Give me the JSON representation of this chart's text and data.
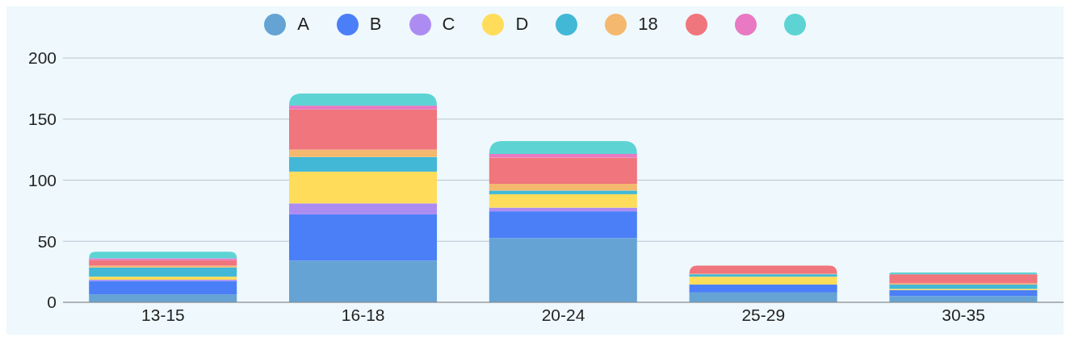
{
  "chart_data": {
    "type": "bar",
    "stacked": true,
    "categories": [
      "13-15",
      "16-18",
      "20-24",
      "25-29",
      "30-35"
    ],
    "series": [
      {
        "name": "A",
        "color": "#65a3d4",
        "values": [
          6.5,
          34,
          52.5,
          8,
          5
        ]
      },
      {
        "name": "B",
        "color": "#4b7ff7",
        "values": [
          11,
          38,
          22,
          6.5,
          5
        ]
      },
      {
        "name": "C",
        "color": "#ad8cf2",
        "values": [
          1,
          9,
          3,
          0,
          0
        ]
      },
      {
        "name": "D",
        "color": "#ffdd5a",
        "values": [
          2.5,
          26,
          11,
          6.5,
          1
        ]
      },
      {
        "color": "#42b8d6",
        "values": [
          7.5,
          12,
          3,
          2,
          3.5
        ]
      },
      {
        "name": "18",
        "color": "#f4b86e",
        "values": [
          1.5,
          6,
          5.5,
          0.5,
          1
        ]
      },
      {
        "color": "#f0757c",
        "values": [
          4.5,
          33,
          21.5,
          6.5,
          7.5
        ]
      },
      {
        "color": "#e879c2",
        "values": [
          1.5,
          3,
          3,
          0,
          0
        ]
      },
      {
        "color": "#5dd4d3",
        "values": [
          5.5,
          10,
          10.5,
          0,
          1.5
        ]
      }
    ],
    "ylim": [
      0,
      200
    ],
    "yticks": [
      0,
      50,
      100,
      150,
      200
    ],
    "grid": "y",
    "legend": "top"
  }
}
